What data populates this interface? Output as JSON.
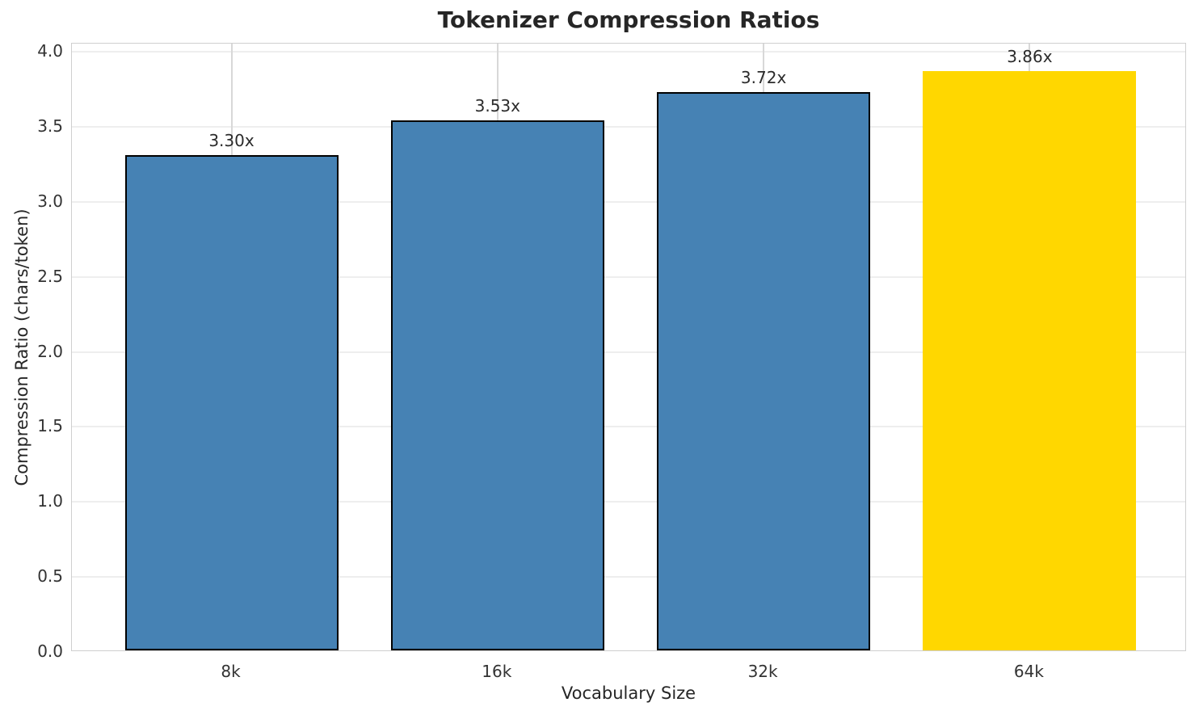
{
  "chart_data": {
    "type": "bar",
    "title": "Tokenizer Compression Ratios",
    "xlabel": "Vocabulary Size",
    "ylabel": "Compression Ratio (chars/token)",
    "categories": [
      "8k",
      "16k",
      "32k",
      "64k"
    ],
    "values": [
      3.3,
      3.53,
      3.72,
      3.86
    ],
    "bar_labels": [
      "3.30x",
      "3.53x",
      "3.72x",
      "3.86x"
    ],
    "bar_colors": [
      "#4682B4",
      "#4682B4",
      "#4682B4",
      "#FFD700"
    ],
    "bar_edge_colors": [
      "#000000",
      "#000000",
      "#000000",
      "none"
    ],
    "highlight_index": 3,
    "ylim": [
      0.0,
      4.05
    ],
    "yticks": [
      "0.0",
      "0.5",
      "1.0",
      "1.5",
      "2.0",
      "2.5",
      "3.0",
      "3.5",
      "4.0"
    ],
    "grid": true,
    "legend": "none",
    "colors": {
      "bar_default": "#4682B4",
      "bar_highlight": "#FFD700",
      "bar_edge": "#000000",
      "grid_horizontal": "#eeeeee",
      "grid_vertical": "#d8d8d8",
      "spine": "#cfcfcf",
      "text": "#262626",
      "tick_text": "#333333",
      "background": "#ffffff"
    }
  }
}
